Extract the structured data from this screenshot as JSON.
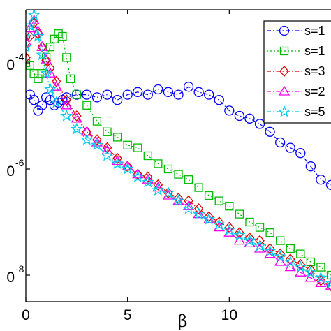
{
  "chart_data": {
    "type": "scatter",
    "xlabel": "β",
    "ylabel": "",
    "xlim": [
      0,
      15
    ],
    "ylim_log10": [
      -8.5,
      -3.0
    ],
    "y_scale": "log",
    "x_ticks": [
      0,
      5,
      10
    ],
    "x_tick_labels": [
      "0",
      "5",
      "10"
    ],
    "y_ticks_log10": [
      -4,
      -6,
      -8
    ],
    "y_tick_labels": [
      "0",
      "0",
      "0"
    ],
    "y_tick_exponents": [
      "-4",
      "-6",
      "-8"
    ],
    "grid": false,
    "legend_placement": "top-right",
    "series": [
      {
        "name": "s=1",
        "color": "#0000ff",
        "marker": "circle",
        "line": "dash-dot",
        "x": [
          0.2,
          0.4,
          0.6,
          0.8,
          1.0,
          1.2,
          1.4,
          1.6,
          1.8,
          2.0,
          2.5,
          3.0,
          3.5,
          4.0,
          4.5,
          5.0,
          5.5,
          6.0,
          6.5,
          7.0,
          7.5,
          8.0,
          8.5,
          9.0,
          9.5,
          10.0,
          10.5,
          11.0,
          11.5,
          12.0,
          12.5,
          13.0,
          13.5,
          14.0,
          14.5,
          15.0
        ],
        "y_log10": [
          -4.6,
          -4.7,
          -4.9,
          -4.8,
          -4.65,
          -4.7,
          -4.8,
          -4.75,
          -4.7,
          -4.65,
          -4.6,
          -4.6,
          -4.65,
          -4.6,
          -4.7,
          -4.6,
          -4.55,
          -4.6,
          -4.5,
          -4.55,
          -4.6,
          -4.45,
          -4.55,
          -4.6,
          -4.7,
          -4.9,
          -5.0,
          -5.05,
          -5.15,
          -5.3,
          -5.5,
          -5.6,
          -5.7,
          -5.95,
          -6.2,
          -6.3
        ]
      },
      {
        "name": "s=1",
        "color": "#00bb00",
        "marker": "square",
        "line": "dotted",
        "x": [
          0.0,
          0.2,
          0.4,
          0.6,
          0.8,
          1.0,
          1.2,
          1.4,
          1.6,
          1.8,
          2.0,
          2.2,
          2.5,
          3.0,
          3.5,
          4.0,
          4.5,
          5.0,
          5.5,
          6.0,
          6.5,
          7.0,
          7.5,
          8.0,
          8.5,
          9.0,
          9.5,
          10.0,
          10.5,
          11.0,
          11.5,
          12.0,
          12.5,
          13.0,
          13.5,
          14.0,
          14.5,
          15.0
        ],
        "y_log10": [
          -4.0,
          -4.05,
          -4.2,
          -4.3,
          -4.2,
          -3.9,
          -3.7,
          -3.55,
          -3.45,
          -3.5,
          -3.9,
          -4.3,
          -4.6,
          -4.8,
          -5.1,
          -5.3,
          -5.4,
          -5.55,
          -5.6,
          -5.75,
          -5.9,
          -6.0,
          -6.1,
          -6.2,
          -6.35,
          -6.5,
          -6.6,
          -6.7,
          -6.85,
          -7.0,
          -7.1,
          -7.2,
          -7.35,
          -7.5,
          -7.6,
          -7.75,
          -7.85,
          -8.0
        ]
      },
      {
        "name": "s=3",
        "color": "#dd0000",
        "marker": "diamond",
        "line": "dash-dot",
        "x": [
          0.0,
          0.2,
          0.4,
          0.6,
          0.8,
          1.0,
          1.2,
          1.5,
          2.0,
          2.5,
          3.0,
          3.5,
          4.0,
          4.5,
          5.0,
          5.5,
          6.0,
          6.5,
          7.0,
          7.5,
          8.0,
          8.5,
          9.0,
          9.5,
          10.0,
          10.5,
          11.0,
          11.5,
          12.0,
          12.5,
          13.0,
          13.5,
          14.0,
          14.5,
          15.0
        ],
        "y_log10": [
          -3.9,
          -3.5,
          -3.25,
          -3.45,
          -3.7,
          -3.95,
          -4.1,
          -4.35,
          -4.7,
          -5.0,
          -5.3,
          -5.45,
          -5.6,
          -5.8,
          -5.95,
          -6.1,
          -6.15,
          -6.3,
          -6.45,
          -6.55,
          -6.6,
          -6.75,
          -6.9,
          -7.0,
          -7.1,
          -7.2,
          -7.3,
          -7.35,
          -7.5,
          -7.6,
          -7.7,
          -7.8,
          -7.9,
          -8.1,
          -8.2
        ]
      },
      {
        "name": "s=2",
        "color": "#ee00ee",
        "marker": "triangle",
        "line": "dash-dot",
        "x": [
          0.0,
          0.2,
          0.4,
          0.6,
          0.8,
          1.0,
          1.2,
          1.5,
          2.0,
          2.5,
          3.0,
          3.5,
          4.0,
          4.5,
          5.0,
          5.5,
          6.0,
          6.5,
          7.0,
          7.5,
          8.0,
          8.5,
          9.0,
          9.5,
          10.0,
          10.5,
          11.0,
          11.5,
          12.0,
          12.5,
          13.0,
          13.5,
          14.0,
          14.5,
          15.0
        ],
        "y_log10": [
          -3.6,
          -3.35,
          -3.2,
          -3.4,
          -3.7,
          -3.95,
          -4.2,
          -4.45,
          -4.8,
          -5.05,
          -5.3,
          -5.5,
          -5.65,
          -5.85,
          -5.95,
          -6.1,
          -6.2,
          -6.35,
          -6.5,
          -6.6,
          -6.7,
          -6.85,
          -6.95,
          -7.1,
          -7.2,
          -7.35,
          -7.4,
          -7.5,
          -7.6,
          -7.75,
          -7.85,
          -7.95,
          -8.05,
          -8.15,
          -8.2
        ]
      },
      {
        "name": "s=5",
        "color": "#00ccee",
        "marker": "star",
        "line": "dash-dot",
        "x": [
          0.0,
          0.2,
          0.4,
          0.6,
          0.8,
          1.0,
          1.2,
          1.5,
          2.0,
          2.5,
          3.0,
          3.5,
          4.0,
          4.5,
          5.0,
          5.5,
          6.0,
          6.5,
          7.0,
          7.5,
          8.0,
          8.5,
          9.0,
          9.5,
          10.0,
          10.5,
          11.0,
          11.5,
          12.0,
          12.5,
          13.0,
          13.5,
          14.0,
          14.5,
          15.0
        ],
        "y_log10": [
          -3.7,
          -3.3,
          -3.1,
          -3.5,
          -3.85,
          -4.2,
          -4.5,
          -4.75,
          -5.0,
          -5.25,
          -5.45,
          -5.55,
          -5.75,
          -5.9,
          -6.0,
          -6.15,
          -6.25,
          -6.4,
          -6.45,
          -6.6,
          -6.75,
          -6.85,
          -6.95,
          -7.05,
          -7.15,
          -7.25,
          -7.35,
          -7.45,
          -7.55,
          -7.65,
          -7.75,
          -7.85,
          -7.95,
          -8.05,
          -8.15
        ]
      }
    ]
  }
}
